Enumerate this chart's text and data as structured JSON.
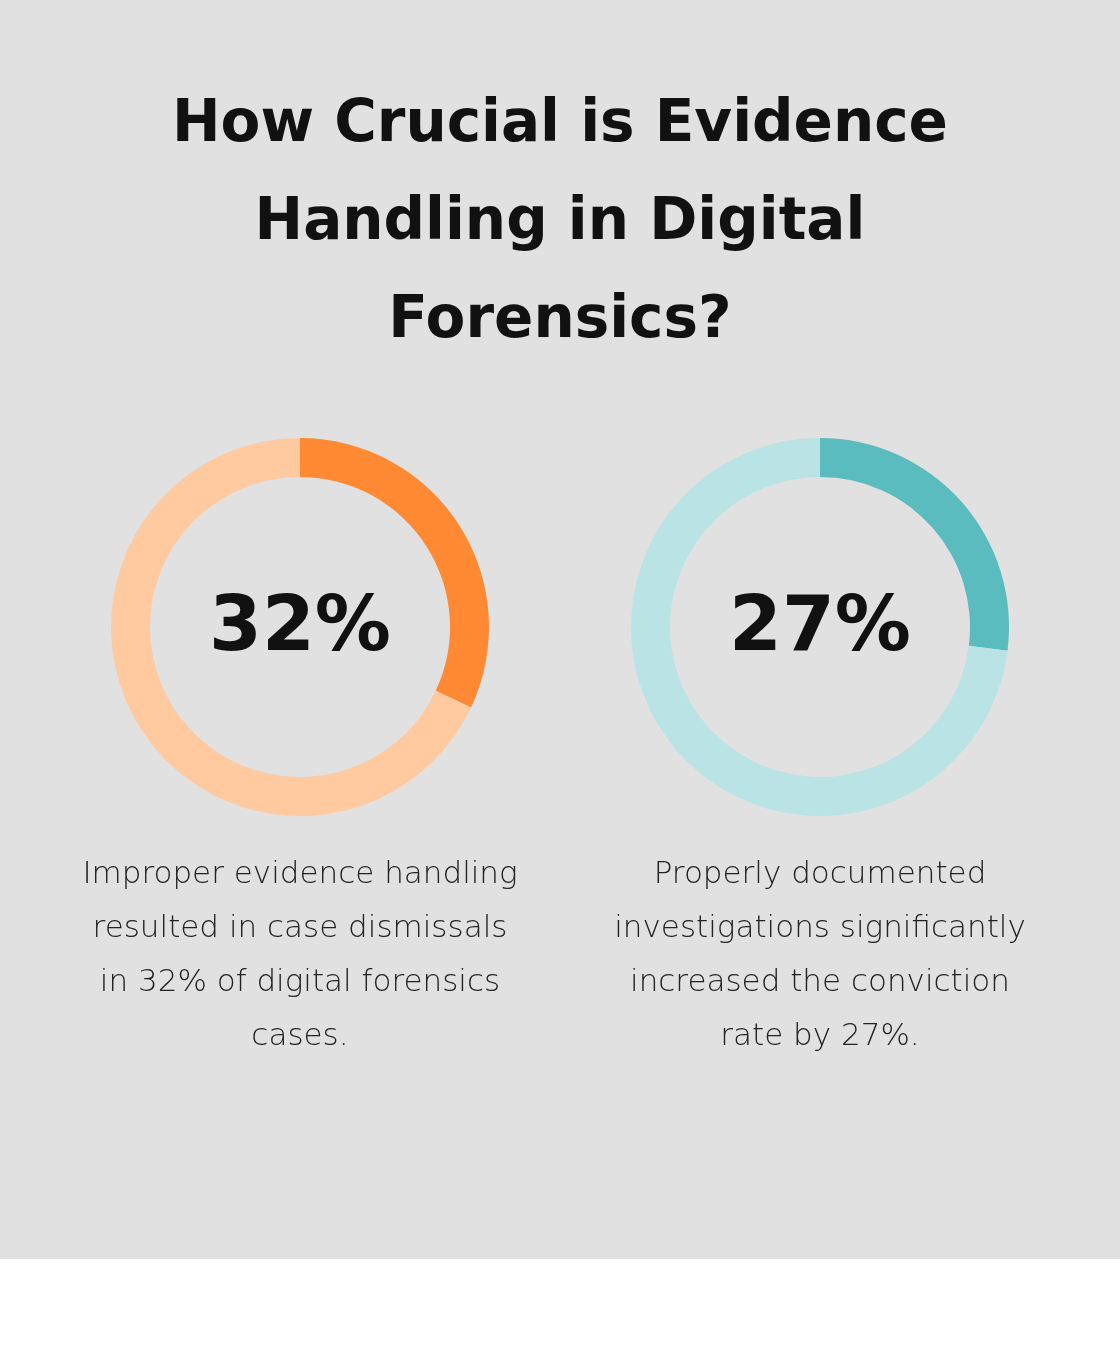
{
  "chart_data": [
    {
      "type": "donut",
      "title": "How Crucial is Evidence Handling in Digital Forensics?",
      "categories": [
        null,
        null
      ],
      "values": [
        32,
        68
      ],
      "colors": [
        "#ff8a33",
        "#ffcaa0"
      ],
      "annotations": [
        "32%",
        "Improper evidence handling resulted in case dismissals in 32% of digital forensics cases."
      ]
    },
    {
      "type": "donut",
      "categories": [
        null,
        null
      ],
      "values": [
        27,
        73
      ],
      "colors": [
        "#5bbcbf",
        "#b9e3e5"
      ],
      "annotations": [
        "27%",
        "Properly documented investigations significantly increased the conviction rate by 27%."
      ]
    }
  ]
}
